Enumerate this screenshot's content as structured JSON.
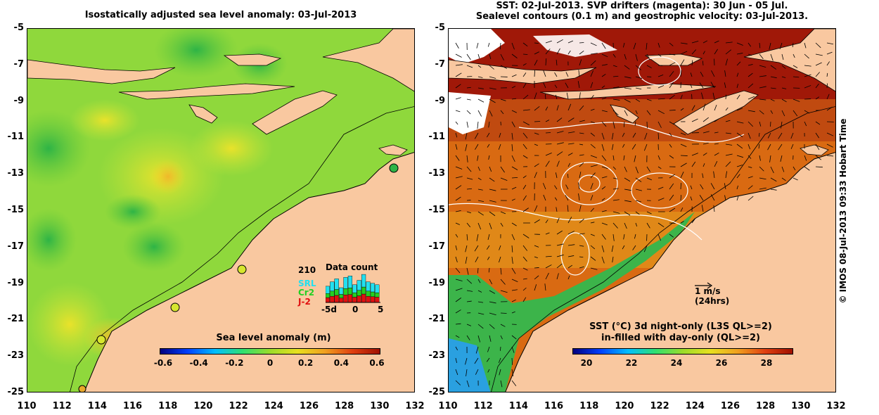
{
  "left": {
    "title": "Isostatically adjusted sea level anomaly: 03-Jul-2013",
    "colorbar_title": "Sea level anomaly (m)",
    "colorbar_ticks": [
      "-0.6",
      "-0.4",
      "-0.2",
      "0",
      "0.2",
      "0.4",
      "0.6"
    ],
    "datacount": {
      "title": "Data count",
      "max": "210",
      "series": [
        "SRL",
        "Cr2",
        "J-2"
      ],
      "series_colors": [
        "#22e0f0",
        "#22d022",
        "#e01010"
      ],
      "axis": [
        "-5d",
        "0",
        "5"
      ]
    }
  },
  "right": {
    "title_line1": "SST: 02-Jul-2013. SVP drifters (magenta): 30 Jun - 05 Jul.",
    "title_line2": "Sealevel contours (0.1 m) and geostrophic velocity: 03-Jul-2013.",
    "colorbar_title_line1": "SST (°C)  3d night-only (L3S QL>=2)",
    "colorbar_title_line2": "in-filled with day-only (QL>=2)",
    "colorbar_ticks": [
      "20",
      "22",
      "24",
      "26",
      "28"
    ],
    "scale_label": "1 m/s",
    "scale_sub": "(24hrs)"
  },
  "axes": {
    "y_ticks": [
      "-5",
      "-7",
      "-9",
      "-11",
      "-13",
      "-15",
      "-17",
      "-19",
      "-21",
      "-23",
      "-25"
    ],
    "x_ticks": [
      "110",
      "112",
      "114",
      "116",
      "118",
      "120",
      "122",
      "124",
      "126",
      "128",
      "130",
      "132"
    ],
    "lon_range": [
      110,
      132
    ],
    "lat_range": [
      -25,
      -5
    ]
  },
  "credit": "© IMOS 08-Jul-2013 09:33 Hobart Time",
  "colors": {
    "land": "#f9c8a0",
    "ocean_sla": "#8fd83c",
    "ocean_sst": "#d96a12"
  }
}
